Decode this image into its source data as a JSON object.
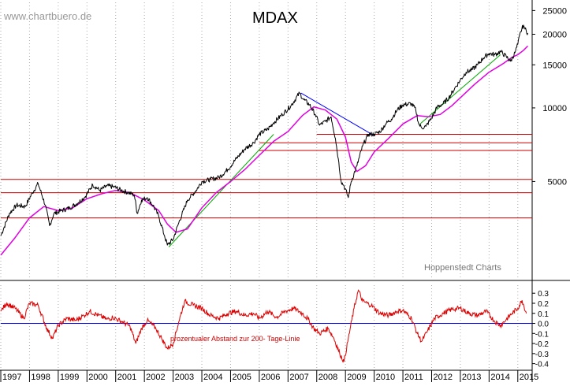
{
  "header": {
    "watermark": "www.chartbuero.de",
    "title": "MDAX",
    "source": "Hoppenstedt Charts"
  },
  "colors": {
    "price": "#000000",
    "sma200": "#e000e0",
    "support": "#cc0000",
    "uptrend": "#00aa00",
    "downtrend": "#0000ff",
    "oscillator": "#dd0000",
    "zeroline": "#0000ff",
    "grid": "#aaaaaa"
  },
  "chart_data": [
    {
      "type": "line",
      "title": "MDAX",
      "scale": "log",
      "ylim": [
        2000,
        27000
      ],
      "y_ticks": [
        5000,
        10000,
        15000,
        20000,
        25000
      ],
      "y_tick_labels": [
        "5000",
        "10000",
        "15000",
        "20000",
        "25000"
      ],
      "xlim": [
        1997.0,
        2015.5
      ],
      "x_ticks": [
        1997,
        1998,
        1999,
        2000,
        2001,
        2002,
        2003,
        2004,
        2005,
        2006,
        2007,
        2008,
        2009,
        2010,
        2011,
        2012,
        2013,
        2014,
        2015
      ],
      "x_tick_labels": [
        "1997",
        "1998",
        "1999",
        "2000",
        "2001",
        "2002",
        "2003",
        "2004",
        "2005",
        "2006",
        "2007",
        "2008",
        "2009",
        "2010",
        "2011",
        "2012",
        "2013",
        "2014",
        "2015"
      ],
      "grid": true,
      "series": [
        {
          "key": "price",
          "x": [
            1997.0,
            1997.3,
            1997.55,
            1997.85,
            1998.1,
            1998.3,
            1998.55,
            1998.7,
            1998.85,
            1999.1,
            1999.4,
            1999.7,
            1999.95,
            2000.2,
            2000.45,
            2000.7,
            2000.95,
            2001.2,
            2001.45,
            2001.65,
            2001.75,
            2001.9,
            2002.1,
            2002.3,
            2002.5,
            2002.7,
            2002.8,
            2003.0,
            2003.2,
            2003.5,
            2003.8,
            2004.0,
            2004.3,
            2004.6,
            2004.9,
            2005.2,
            2005.5,
            2005.8,
            2006.0,
            2006.3,
            2006.5,
            2006.8,
            2007.1,
            2007.4,
            2007.55,
            2007.75,
            2007.95,
            2008.1,
            2008.3,
            2008.5,
            2008.65,
            2008.75,
            2008.85,
            2008.95,
            2009.1,
            2009.2,
            2009.4,
            2009.6,
            2009.8,
            2010.0,
            2010.2,
            2010.4,
            2010.6,
            2010.8,
            2011.0,
            2011.3,
            2011.45,
            2011.55,
            2011.65,
            2011.8,
            2012.0,
            2012.2,
            2012.4,
            2012.6,
            2012.8,
            2013.0,
            2013.2,
            2013.4,
            2013.6,
            2013.8,
            2014.0,
            2014.2,
            2014.4,
            2014.6,
            2014.75,
            2014.9,
            2015.0,
            2015.1,
            2015.2,
            2015.25,
            2015.35
          ],
          "y": [
            3000,
            3700,
            4000,
            3950,
            4500,
            4900,
            4000,
            3300,
            3700,
            3800,
            3900,
            4100,
            4350,
            4850,
            4600,
            4800,
            4750,
            4600,
            4500,
            4400,
            3700,
            4200,
            4300,
            4000,
            3600,
            3000,
            2750,
            2900,
            3400,
            4200,
            4600,
            5000,
            5100,
            5200,
            5600,
            6200,
            6800,
            7200,
            7800,
            8200,
            8700,
            9400,
            10200,
            11500,
            10800,
            10300,
            9400,
            8500,
            8800,
            9200,
            7500,
            6200,
            5000,
            4800,
            4300,
            5000,
            5800,
            7000,
            7800,
            7800,
            8000,
            8600,
            9000,
            9800,
            10300,
            10400,
            9800,
            8600,
            8300,
            8400,
            9100,
            10100,
            10400,
            11000,
            12000,
            13000,
            14000,
            14300,
            15000,
            16000,
            16700,
            16500,
            17000,
            16200,
            15500,
            16800,
            18200,
            20500,
            21800,
            21000,
            20200
          ]
        },
        {
          "key": "sma200",
          "x": [
            1997.0,
            1997.5,
            1998.0,
            1998.5,
            1999.0,
            1999.5,
            2000.0,
            2000.5,
            2001.0,
            2001.5,
            2002.0,
            2002.5,
            2002.8,
            2003.1,
            2003.5,
            2004.0,
            2004.5,
            2005.0,
            2005.5,
            2006.0,
            2006.5,
            2007.0,
            2007.5,
            2007.9,
            2008.3,
            2008.7,
            2009.0,
            2009.2,
            2009.4,
            2009.7,
            2010.0,
            2010.5,
            2011.0,
            2011.5,
            2011.9,
            2012.3,
            2012.7,
            2013.0,
            2013.5,
            2014.0,
            2014.5,
            2014.8,
            2015.0,
            2015.2,
            2015.35
          ],
          "y": [
            2500,
            2950,
            3550,
            3950,
            3800,
            3900,
            4250,
            4450,
            4600,
            4500,
            4200,
            3800,
            3350,
            3100,
            3200,
            3900,
            4500,
            5000,
            5600,
            6400,
            7300,
            8000,
            9300,
            10100,
            9800,
            9000,
            7600,
            6000,
            5500,
            5800,
            6600,
            7500,
            8600,
            9300,
            9200,
            9400,
            10200,
            11000,
            12500,
            14000,
            15200,
            16100,
            16500,
            17200,
            17900
          ]
        },
        {
          "key": "uptrend-2003",
          "x": [
            2002.85,
            2006.5
          ],
          "y": [
            2700,
            7800
          ]
        },
        {
          "key": "downtrend-2007",
          "x": [
            2007.45,
            2010.0
          ],
          "y": [
            11500,
            7700
          ]
        },
        {
          "key": "uptrend-2011",
          "x": [
            2011.6,
            2014.4
          ],
          "y": [
            8600,
            16500
          ]
        }
      ],
      "horizontal_lines": [
        {
          "y": 7800,
          "x_from": 2008.0
        },
        {
          "y": 7200,
          "x_from": 2006.0
        },
        {
          "y": 6700,
          "x_from": 2006.0
        },
        {
          "y": 5100,
          "x_from": 1997.0
        },
        {
          "y": 4500,
          "x_from": 1997.0
        },
        {
          "y": 3550,
          "x_from": 1997.0
        }
      ]
    },
    {
      "type": "line",
      "title": "",
      "annotation": "prozentualer Abstand zur 200- Tage-Linie",
      "ylim": [
        -0.45,
        0.38
      ],
      "y_ticks": [
        0.3,
        0.2,
        0.1,
        0.0,
        -0.1,
        -0.2,
        -0.3,
        -0.4
      ],
      "y_tick_labels": [
        "0.3",
        "0.2",
        "0.1",
        "0.0",
        "-0.1",
        "-0.2",
        "-0.3",
        "-0.4"
      ],
      "xlim": [
        1997.0,
        2015.5
      ],
      "grid": true,
      "series": [
        {
          "key": "oscillator",
          "x": [
            1997.0,
            1997.2,
            1997.5,
            1997.8,
            1998.0,
            1998.3,
            1998.6,
            1998.8,
            1999.0,
            1999.3,
            1999.6,
            1999.9,
            2000.1,
            2000.4,
            2000.7,
            2000.9,
            2001.2,
            2001.5,
            2001.7,
            2001.9,
            2002.1,
            2002.4,
            2002.6,
            2002.8,
            2003.0,
            2003.2,
            2003.4,
            2003.7,
            2004.0,
            2004.3,
            2004.6,
            2004.9,
            2005.2,
            2005.5,
            2005.8,
            2006.0,
            2006.3,
            2006.6,
            2006.9,
            2007.2,
            2007.5,
            2007.7,
            2007.9,
            2008.1,
            2008.4,
            2008.6,
            2008.8,
            2008.95,
            2009.1,
            2009.3,
            2009.45,
            2009.6,
            2009.9,
            2010.2,
            2010.5,
            2010.8,
            2011.0,
            2011.3,
            2011.5,
            2011.65,
            2011.85,
            2012.1,
            2012.4,
            2012.7,
            2013.0,
            2013.3,
            2013.6,
            2013.9,
            2014.2,
            2014.4,
            2014.6,
            2014.8,
            2015.0,
            2015.15,
            2015.3
          ],
          "y": [
            0.12,
            0.2,
            0.15,
            0.05,
            0.2,
            0.18,
            -0.05,
            -0.15,
            -0.02,
            0.05,
            0.03,
            0.08,
            0.12,
            0.08,
            0.04,
            0.06,
            0.02,
            -0.03,
            -0.2,
            -0.05,
            0.03,
            -0.05,
            -0.15,
            -0.25,
            -0.2,
            0.02,
            0.22,
            0.18,
            0.15,
            0.08,
            0.05,
            0.1,
            0.12,
            0.08,
            0.1,
            0.05,
            0.12,
            0.06,
            0.12,
            0.15,
            0.1,
            0.04,
            -0.05,
            -0.1,
            -0.05,
            -0.15,
            -0.3,
            -0.38,
            -0.15,
            0.15,
            0.33,
            0.22,
            0.18,
            0.1,
            0.08,
            0.12,
            0.13,
            0.05,
            -0.1,
            -0.18,
            -0.08,
            0.05,
            0.1,
            0.14,
            0.15,
            0.1,
            0.08,
            0.12,
            0.02,
            -0.02,
            0.04,
            0.1,
            0.15,
            0.23,
            0.1
          ]
        }
      ],
      "horizontal_lines": [
        {
          "y": 0.0,
          "x_from": 1997.0
        }
      ]
    }
  ]
}
